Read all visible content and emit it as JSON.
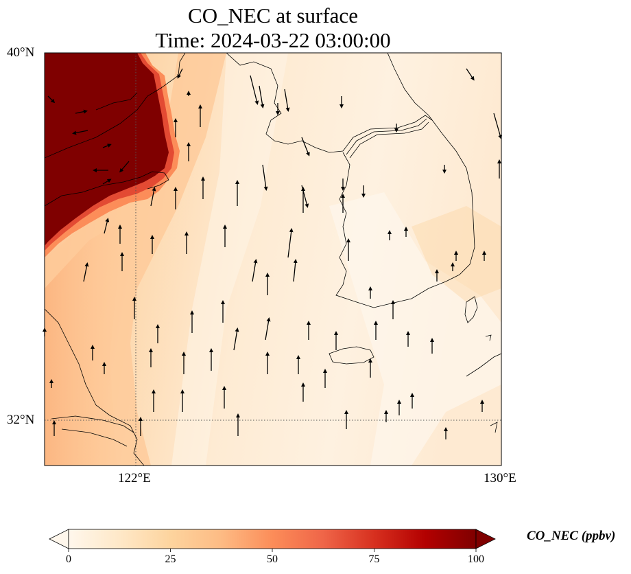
{
  "title": {
    "line1": "CO_NEC at surface",
    "line2": "Time: 2024-03-22 03:00:00"
  },
  "map": {
    "lon_range": [
      118,
      130
    ],
    "lat_range": [
      31,
      40
    ],
    "gridlines": {
      "lon": 122,
      "lat": 32,
      "style": "dotted"
    },
    "lat_ticks": [
      {
        "value": 40,
        "label": "40°N"
      },
      {
        "value": 32,
        "label": "32°N"
      }
    ],
    "lon_ticks": [
      {
        "value": 122,
        "label": "122°E"
      },
      {
        "value": 130,
        "label": "130°E"
      }
    ],
    "field": "CO_NEC concentration (ppbv), high (>100) over Liaodong/North China Plain in the NW corner, elevated (~25-35) along the Chinese coast, low (~5-15) over the Yellow Sea and Korea",
    "wind": "predominantly southerly/south-southeasterly winds across the domain"
  },
  "colorbar": {
    "label": "CO_NEC (ppbv)",
    "min": 0,
    "max": 100,
    "extend": "both",
    "cmap": "OrRd",
    "ticks": [
      {
        "value": 0,
        "label": "0"
      },
      {
        "value": 25,
        "label": "25"
      },
      {
        "value": 50,
        "label": "50"
      },
      {
        "value": 75,
        "label": "75"
      },
      {
        "value": 100,
        "label": "100"
      }
    ],
    "colors": [
      "#fff7ec",
      "#fee8c8",
      "#fdd49e",
      "#fdbb84",
      "#fc8d59",
      "#ef6548",
      "#d7301f",
      "#b30000",
      "#7f0000"
    ]
  }
}
